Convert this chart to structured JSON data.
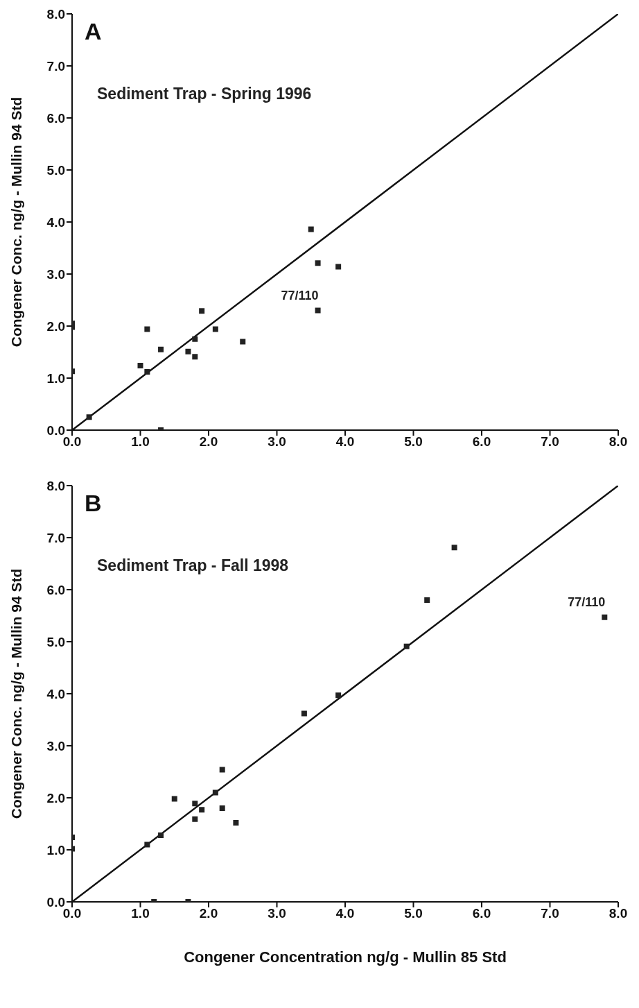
{
  "chart_data": [
    {
      "type": "scatter",
      "title": "Sediment Trap - Spring 1996",
      "ylabel": "Congener Conc. ng/g - Mullin 94 Std",
      "annotations": [
        "A",
        {
          "text": "77/110",
          "x": 3.6,
          "y": 2.3
        }
      ],
      "xlim": [
        0,
        8
      ],
      "ylim": [
        0,
        8
      ],
      "xticks": [
        {
          "value": 0,
          "label": "0.0"
        },
        {
          "value": 1,
          "label": "1.0"
        },
        {
          "value": 2,
          "label": "2.0"
        },
        {
          "value": 3,
          "label": "3.0"
        },
        {
          "value": 4,
          "label": "4.0"
        },
        {
          "value": 5,
          "label": "5.0"
        },
        {
          "value": 6,
          "label": "6.0"
        },
        {
          "value": 7,
          "label": "7.0"
        },
        {
          "value": 8,
          "label": "8.0"
        }
      ],
      "yticks": [
        {
          "value": 0,
          "label": "0.0"
        },
        {
          "value": 1,
          "label": "1.0"
        },
        {
          "value": 2,
          "label": "2.0"
        },
        {
          "value": 3,
          "label": "3.0"
        },
        {
          "value": 4,
          "label": "4.0"
        },
        {
          "value": 5,
          "label": "5.0"
        },
        {
          "value": 6,
          "label": "6.0"
        },
        {
          "value": 7,
          "label": "7.0"
        },
        {
          "value": 8,
          "label": "8.0"
        }
      ],
      "series": [
        {
          "marker": "square",
          "color": "#222222",
          "x": [
            0,
            0,
            0,
            0.25,
            1.0,
            1.1,
            1.1,
            1.3,
            1.3,
            1.7,
            1.8,
            1.8,
            1.9,
            2.1,
            2.5,
            3.5,
            3.6,
            3.6,
            3.9
          ],
          "values": [
            2.05,
            1.98,
            1.13,
            0.25,
            1.24,
            1.94,
            1.12,
            1.55,
            0,
            1.51,
            1.75,
            1.41,
            2.29,
            1.94,
            1.7,
            3.86,
            3.21,
            2.3,
            3.14
          ]
        },
        {
          "type": "line",
          "marker": "none",
          "color": "#111111",
          "x": [
            0,
            8
          ],
          "values": [
            0,
            8
          ]
        }
      ]
    },
    {
      "type": "scatter",
      "title": "Sediment Trap - Fall 1998",
      "xlabel": "Congener Concentration ng/g - Mullin 85 Std",
      "ylabel": "Congener Conc. ng/g - Mullin 94 Std",
      "annotations": [
        "B",
        {
          "text": "77/110",
          "x": 7.8,
          "y": 5.47
        }
      ],
      "xlim": [
        0,
        8
      ],
      "ylim": [
        0,
        8
      ],
      "xticks": [
        {
          "value": 0,
          "label": "0.0"
        },
        {
          "value": 1,
          "label": "1.0"
        },
        {
          "value": 2,
          "label": "2.0"
        },
        {
          "value": 3,
          "label": "3.0"
        },
        {
          "value": 4,
          "label": "4.0"
        },
        {
          "value": 5,
          "label": "5.0"
        },
        {
          "value": 6,
          "label": "6.0"
        },
        {
          "value": 7,
          "label": "7.0"
        },
        {
          "value": 8,
          "label": "8.0"
        }
      ],
      "yticks": [
        {
          "value": 0,
          "label": "0.0"
        },
        {
          "value": 1,
          "label": "1.0"
        },
        {
          "value": 2,
          "label": "2.0"
        },
        {
          "value": 3,
          "label": "3.0"
        },
        {
          "value": 4,
          "label": "4.0"
        },
        {
          "value": 5,
          "label": "5.0"
        },
        {
          "value": 6,
          "label": "6.0"
        },
        {
          "value": 7,
          "label": "7.0"
        },
        {
          "value": 8,
          "label": "8.0"
        }
      ],
      "series": [
        {
          "marker": "square",
          "color": "#222222",
          "x": [
            0,
            0,
            1.1,
            1.2,
            1.3,
            1.5,
            1.7,
            1.8,
            1.8,
            1.9,
            2.1,
            2.2,
            2.2,
            2.4,
            3.4,
            3.9,
            4.9,
            5.2,
            5.6,
            7.8
          ],
          "values": [
            1.24,
            1.02,
            1.1,
            0,
            1.28,
            1.98,
            0,
            1.89,
            1.59,
            1.77,
            2.1,
            2.54,
            1.8,
            1.52,
            3.62,
            3.97,
            4.91,
            5.8,
            6.81,
            5.47
          ]
        },
        {
          "type": "line",
          "marker": "none",
          "color": "#111111",
          "x": [
            0,
            8
          ],
          "values": [
            0,
            8
          ]
        }
      ]
    }
  ]
}
